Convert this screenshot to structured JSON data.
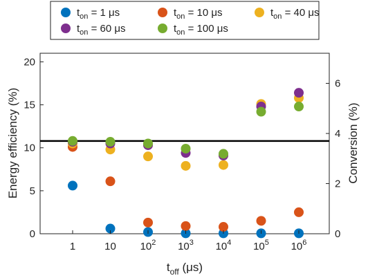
{
  "chart_data": {
    "type": "scatter",
    "x": [
      "1",
      "10",
      "10^2",
      "10^3",
      "10^4",
      "10^5",
      "10^6"
    ],
    "x_tick_labels": [
      {
        "base": "1",
        "exp": ""
      },
      {
        "base": "10",
        "exp": ""
      },
      {
        "base": "10",
        "exp": "2"
      },
      {
        "base": "10",
        "exp": "3"
      },
      {
        "base": "10",
        "exp": "4"
      },
      {
        "base": "10",
        "exp": "5"
      },
      {
        "base": "10",
        "exp": "6"
      }
    ],
    "x_scale": "log",
    "xlabel": {
      "main": "t",
      "sub": "off",
      "rest": " (μs)"
    },
    "ylabel": "Energy efficiency (%)",
    "ylim": [
      0,
      21
    ],
    "y_ticks": [
      0,
      5,
      10,
      15,
      20
    ],
    "y2label": "Conversion (%)",
    "y2lim": [
      0,
      7.2
    ],
    "y2_ticks": [
      0,
      2,
      4,
      6
    ],
    "reference_line": {
      "y2": 3.7,
      "color": "#000000"
    },
    "grid": false,
    "legend_placement": "top",
    "series": [
      {
        "name": "t_on = 1 μs",
        "legend": {
          "sub": "on",
          "rest": " = 1 μs"
        },
        "color": "#0072BD",
        "efficiency": [
          5.6,
          0.6,
          0.2,
          0.05,
          0.05,
          0.05,
          0.05
        ],
        "conversion": [
          null,
          null,
          null,
          null,
          null,
          null,
          null
        ]
      },
      {
        "name": "t_on = 10 μs",
        "legend": {
          "sub": "on",
          "rest": " = 10 μs"
        },
        "color": "#D95319",
        "efficiency": [
          10.1,
          6.1,
          1.3,
          0.9,
          0.8,
          1.5,
          2.5
        ],
        "conversion": [
          null,
          null,
          null,
          null,
          null,
          null,
          null
        ]
      },
      {
        "name": "t_on = 40 μs",
        "legend": {
          "sub": "on",
          "rest": " = 40 μs"
        },
        "color": "#EDB120",
        "efficiency": [
          10.5,
          9.8,
          9.0,
          7.9,
          8.0,
          15.1,
          15.8
        ],
        "conversion": [
          null,
          null,
          null,
          null,
          null,
          null,
          null
        ]
      },
      {
        "name": "t_on = 60 μs",
        "legend": {
          "sub": "on",
          "rest": " = 60 μs"
        },
        "color": "#7E2F8E",
        "efficiency": [
          10.7,
          10.5,
          10.3,
          9.4,
          9.1,
          14.8,
          16.4
        ],
        "conversion": [
          null,
          null,
          null,
          null,
          null,
          null,
          null
        ]
      },
      {
        "name": "t_on = 100 μs",
        "legend": {
          "sub": "on",
          "rest": " = 100 μs"
        },
        "color": "#77AC30",
        "efficiency": [
          10.8,
          10.7,
          10.5,
          9.9,
          9.3,
          14.2,
          14.8
        ],
        "conversion": [
          null,
          null,
          null,
          null,
          null,
          null,
          null
        ]
      }
    ]
  }
}
